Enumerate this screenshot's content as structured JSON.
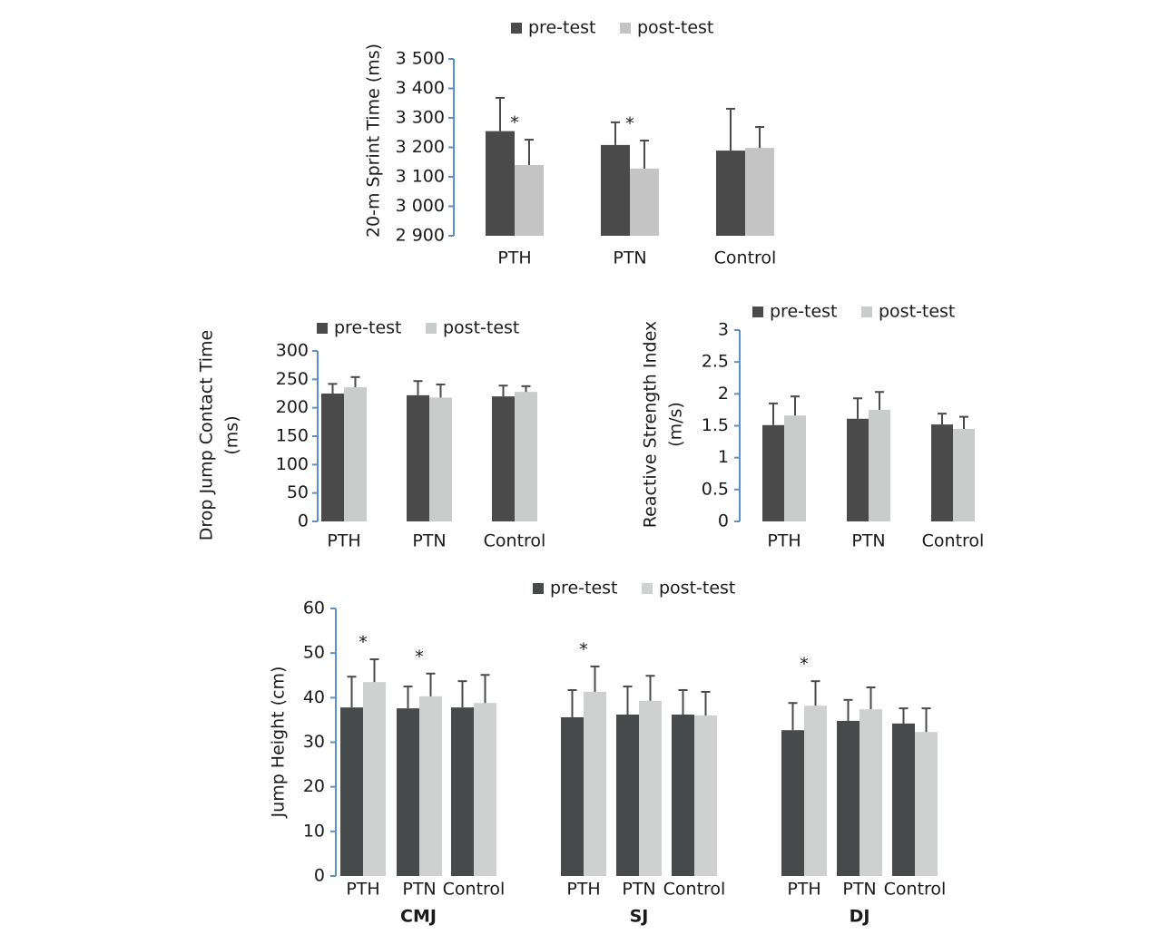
{
  "chart_data": [
    {
      "type": "bar",
      "ylabel": [
        "20-m Sprint Time (ms)"
      ],
      "categories": [
        "PTH",
        "PTN",
        "Control"
      ],
      "series": [
        {
          "name": "pre-test",
          "color": "#4a4a4a",
          "values": [
            3255,
            3208,
            3189
          ],
          "errors": [
            113,
            77,
            142
          ]
        },
        {
          "name": "post-test",
          "color": "#c4c4c4",
          "values": [
            3140,
            3128,
            3198
          ],
          "errors": [
            86,
            95,
            71
          ]
        }
      ],
      "ylim": [
        2900,
        3500
      ],
      "yticks": [
        {
          "value": 2900,
          "label": "2 900"
        },
        {
          "value": 3000,
          "label": "3 000"
        },
        {
          "value": 3100,
          "label": "3 100"
        },
        {
          "value": 3200,
          "label": "3 200"
        },
        {
          "value": 3300,
          "label": "3 300"
        },
        {
          "value": 3400,
          "label": "3 400"
        },
        {
          "value": 3500,
          "label": "3 500"
        }
      ],
      "annotations": [
        {
          "text": "*",
          "series": 1,
          "index": 0
        },
        {
          "text": "*",
          "series": 1,
          "index": 1
        }
      ]
    },
    {
      "type": "bar",
      "ylabel": [
        "Drop Jump Contact Time",
        "(ms)"
      ],
      "categories": [
        "PTH",
        "PTN",
        "Control"
      ],
      "series": [
        {
          "name": "pre-test",
          "color": "#4a4a4a",
          "values": [
            225,
            222,
            220
          ],
          "errors": [
            17,
            25,
            19
          ]
        },
        {
          "name": "post-test",
          "color": "#c8cccb",
          "values": [
            236,
            218,
            228
          ],
          "errors": [
            18,
            23,
            10
          ]
        }
      ],
      "ylim": [
        0,
        300
      ],
      "yticks": [
        0,
        50,
        100,
        150,
        200,
        250,
        300
      ]
    },
    {
      "type": "bar",
      "ylabel": [
        "Reactive Strength Index",
        "(m/s)"
      ],
      "categories": [
        "PTH",
        "PTN",
        "Control"
      ],
      "series": [
        {
          "name": "pre-test",
          "color": "#4a4a4a",
          "values": [
            1.51,
            1.61,
            1.52
          ],
          "errors": [
            0.34,
            0.32,
            0.17
          ]
        },
        {
          "name": "post-test",
          "color": "#c8cccb",
          "values": [
            1.66,
            1.75,
            1.45
          ],
          "errors": [
            0.3,
            0.28,
            0.19
          ]
        }
      ],
      "ylim": [
        0,
        3
      ],
      "yticks": [
        0,
        0.5,
        1,
        1.5,
        2,
        2.5,
        3
      ]
    },
    {
      "type": "bar",
      "ylabel": [
        "Jump Height (cm)"
      ],
      "groups": [
        "CMJ",
        "SJ",
        "DJ"
      ],
      "categories": [
        "PTH",
        "PTN",
        "Control",
        "PTH",
        "PTN",
        "Control",
        "PTH",
        "PTN",
        "Control"
      ],
      "series": [
        {
          "name": "pre-test",
          "color": "#464a4a",
          "values": [
            37.8,
            37.6,
            37.8,
            35.6,
            36.2,
            36.2,
            32.7,
            34.8,
            34.2
          ],
          "errors": [
            6.9,
            4.9,
            5.9,
            6.1,
            6.3,
            5.5,
            6.1,
            4.7,
            3.4
          ]
        },
        {
          "name": "post-test",
          "color": "#cfd1d1",
          "values": [
            43.5,
            40.3,
            38.8,
            41.3,
            39.3,
            36.0,
            38.2,
            37.4,
            32.3
          ],
          "errors": [
            5.1,
            5.1,
            6.3,
            5.7,
            5.6,
            5.3,
            5.5,
            4.9,
            5.3
          ]
        }
      ],
      "ylim": [
        0,
        60
      ],
      "yticks": [
        0,
        10,
        20,
        30,
        40,
        50,
        60
      ],
      "annotations": [
        {
          "text": "*",
          "series": 1,
          "index": 0
        },
        {
          "text": "*",
          "series": 1,
          "index": 1
        },
        {
          "text": "*",
          "series": 1,
          "index": 3
        },
        {
          "text": "*",
          "series": 1,
          "index": 6
        }
      ]
    }
  ]
}
